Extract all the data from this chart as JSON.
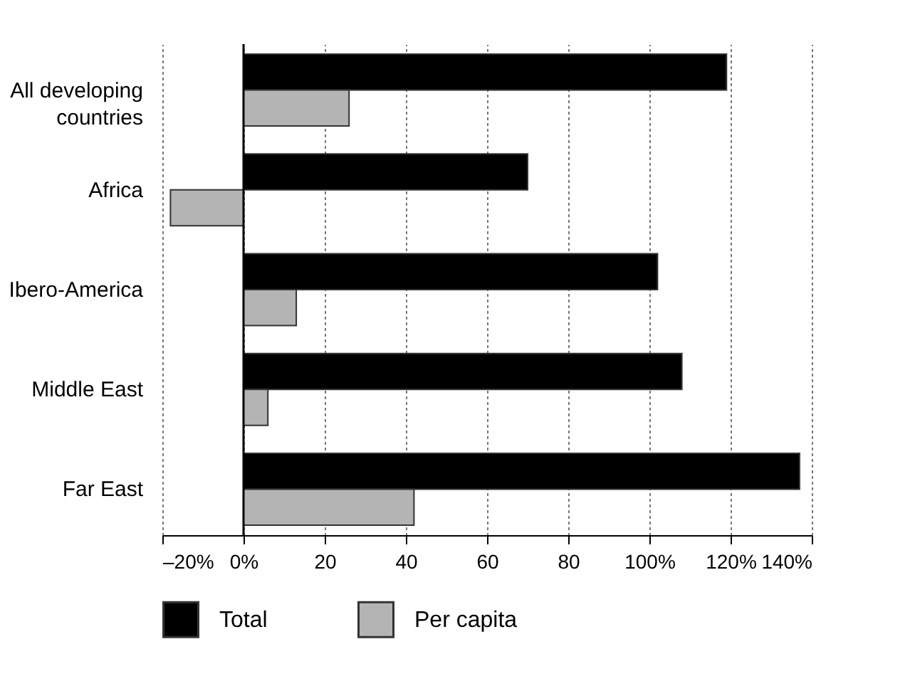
{
  "chart_data": {
    "type": "bar",
    "orientation": "horizontal",
    "categories": [
      "All developing countries",
      "Africa",
      "Ibero-America",
      "Middle East",
      "Far East"
    ],
    "series": [
      {
        "name": "Total",
        "color": "#000000",
        "values": [
          119,
          70,
          102,
          108,
          137
        ]
      },
      {
        "name": "Per capita",
        "color": "#b4b4b4",
        "values": [
          26,
          -18,
          13,
          6,
          42
        ]
      }
    ],
    "xlim": [
      -20,
      140
    ],
    "xticks": [
      {
        "value": -20,
        "label": "–20%"
      },
      {
        "value": 0,
        "label": "0%"
      },
      20,
      40,
      60,
      80,
      {
        "value": 100,
        "label": "100%"
      },
      {
        "value": 120,
        "label": "120%"
      },
      {
        "value": 140,
        "label": "140%"
      }
    ],
    "ref_lines": [
      {
        "axis": "x",
        "value": 0,
        "color": "#000000"
      }
    ],
    "grid": "x",
    "legend": "bottom"
  }
}
